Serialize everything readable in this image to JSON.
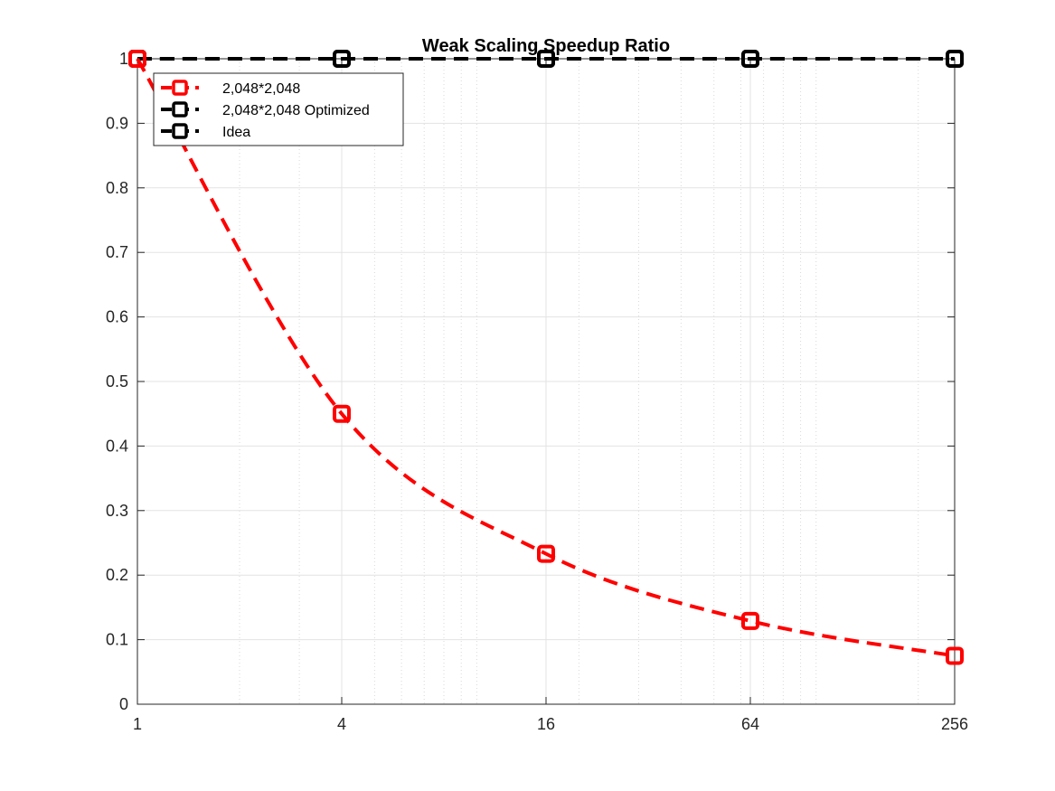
{
  "chart_data": {
    "type": "line",
    "title": "Weak Scaling Speedup Ratio",
    "xlabel": "",
    "ylabel": "",
    "x_scale": "log2",
    "x": [
      1,
      4,
      16,
      64,
      256
    ],
    "x_tick_labels": [
      "1",
      "4",
      "16",
      "64",
      "256"
    ],
    "y_tick_labels": [
      "0",
      "0.1",
      "0.2",
      "0.3",
      "0.4",
      "0.5",
      "0.6",
      "0.7",
      "0.8",
      "0.9",
      "1"
    ],
    "xlim": [
      1,
      256
    ],
    "ylim": [
      0,
      1
    ],
    "grid": true,
    "legend_position": "top-left",
    "series": [
      {
        "name": "2,048*2,048",
        "values": [
          1.0,
          0.45,
          0.233,
          0.129,
          0.075
        ],
        "color": "#ff0000",
        "marker": "square",
        "line_style": "dashed"
      },
      {
        "name": "2,048*2,048 Optimized",
        "values": [
          1.0,
          1.0,
          1.0,
          1.0,
          1.0
        ],
        "color": "#000000",
        "marker": "square",
        "line_style": "dashed"
      },
      {
        "name": "Idea",
        "values": [
          1.0,
          1.0,
          1.0,
          1.0,
          1.0
        ],
        "color": "#000000",
        "marker": "square",
        "line_style": "dashed"
      }
    ]
  }
}
